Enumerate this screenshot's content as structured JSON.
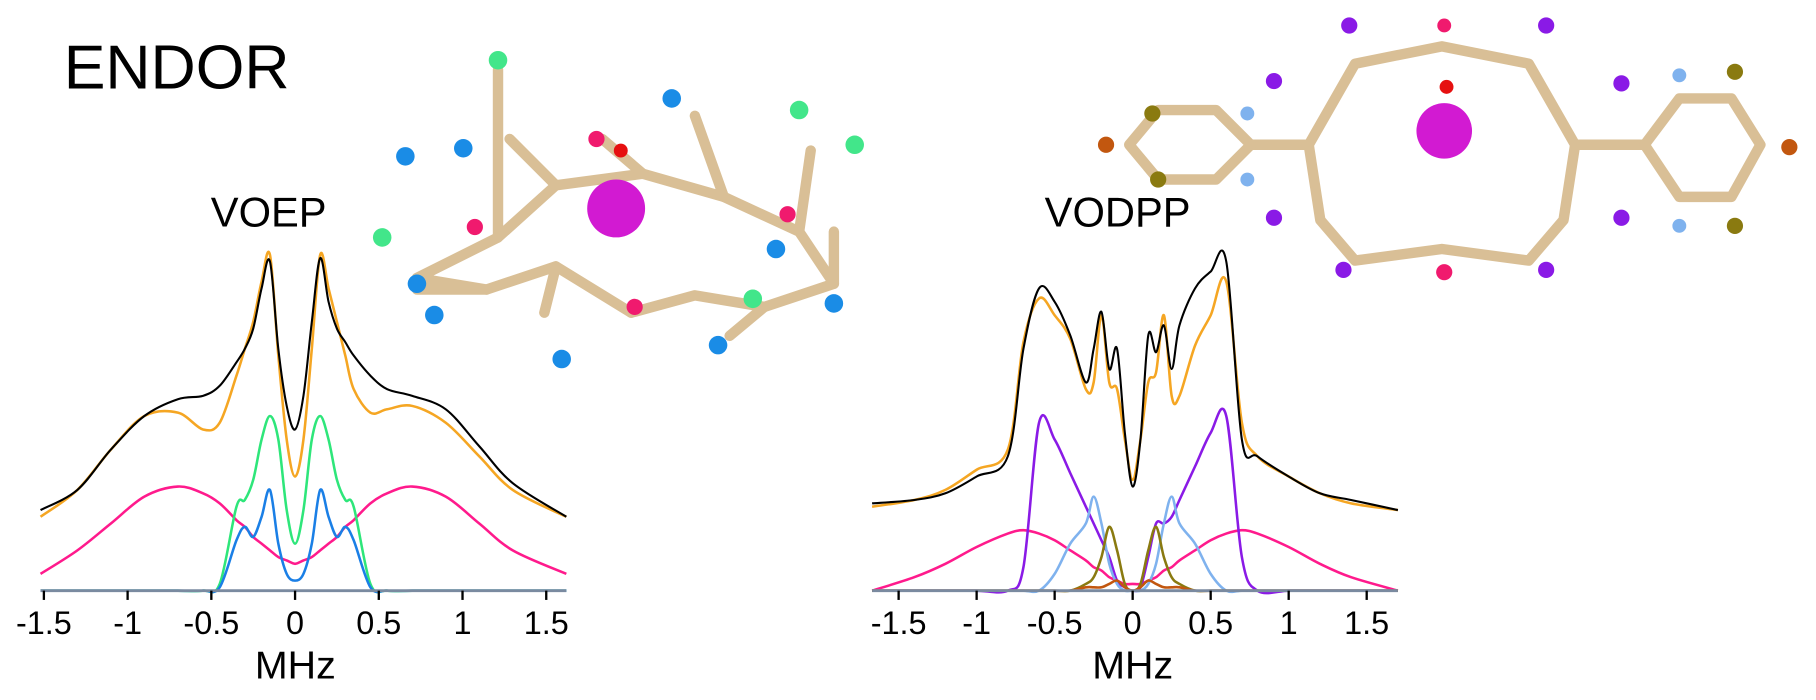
{
  "title": "ENDOR",
  "chart_data": [
    {
      "type": "line",
      "title": "VOEP",
      "xlabel": "MHz",
      "xlim": [
        -1.52,
        1.62
      ],
      "ylim": [
        0,
        1.05
      ],
      "xticks": [
        -1.5,
        -1,
        -0.5,
        0,
        0.5,
        1,
        1.5
      ],
      "x": [
        -1.52,
        -1.3,
        -1.1,
        -0.9,
        -0.7,
        -0.55,
        -0.45,
        -0.35,
        -0.3,
        -0.25,
        -0.2,
        -0.15,
        -0.1,
        -0.05,
        0,
        0.05,
        0.1,
        0.15,
        0.2,
        0.25,
        0.3,
        0.35,
        0.45,
        0.55,
        0.7,
        0.9,
        1.1,
        1.3,
        1.62
      ],
      "series": [
        {
          "color": "#ff1a8c",
          "values": [
            0.05,
            0.12,
            0.2,
            0.28,
            0.31,
            0.29,
            0.26,
            0.21,
            0.19,
            0.16,
            0.14,
            0.12,
            0.1,
            0.09,
            0.08,
            0.09,
            0.1,
            0.12,
            0.14,
            0.16,
            0.19,
            0.21,
            0.26,
            0.29,
            0.31,
            0.28,
            0.2,
            0.12,
            0.05
          ]
        },
        {
          "color": "#2ee67a",
          "values": [
            0,
            0,
            0,
            0,
            0,
            0,
            0.02,
            0.25,
            0.27,
            0.33,
            0.45,
            0.52,
            0.45,
            0.24,
            0.14,
            0.24,
            0.45,
            0.52,
            0.45,
            0.33,
            0.27,
            0.25,
            0.02,
            0,
            0,
            0,
            0,
            0,
            0
          ]
        },
        {
          "color": "#1a7fe6",
          "values": [
            0,
            0,
            0,
            0,
            0,
            0,
            0.01,
            0.15,
            0.19,
            0.16,
            0.22,
            0.3,
            0.14,
            0.05,
            0.03,
            0.05,
            0.14,
            0.3,
            0.22,
            0.16,
            0.19,
            0.15,
            0.01,
            0,
            0,
            0,
            0,
            0,
            0
          ]
        },
        {
          "color": "#f5a623",
          "values": [
            0.22,
            0.3,
            0.42,
            0.52,
            0.53,
            0.48,
            0.5,
            0.64,
            0.72,
            0.8,
            0.92,
            1.0,
            0.7,
            0.45,
            0.34,
            0.45,
            0.72,
            1.0,
            0.9,
            0.8,
            0.7,
            0.6,
            0.53,
            0.54,
            0.55,
            0.5,
            0.4,
            0.3,
            0.22
          ]
        },
        {
          "color": "#000000",
          "values": [
            0.24,
            0.3,
            0.42,
            0.52,
            0.57,
            0.58,
            0.61,
            0.68,
            0.72,
            0.78,
            0.9,
            0.98,
            0.72,
            0.55,
            0.48,
            0.58,
            0.8,
            0.99,
            0.86,
            0.78,
            0.74,
            0.7,
            0.64,
            0.6,
            0.58,
            0.54,
            0.43,
            0.32,
            0.22
          ]
        }
      ]
    },
    {
      "type": "line",
      "title": "VODPP",
      "xlabel": "MHz",
      "xlim": [
        -1.67,
        1.7
      ],
      "ylim": [
        0,
        1.05
      ],
      "xticks": [
        -1.5,
        -1,
        -0.5,
        0,
        0.5,
        1,
        1.5
      ],
      "x": [
        -1.67,
        -1.4,
        -1.2,
        -1.0,
        -0.8,
        -0.7,
        -0.6,
        -0.5,
        -0.4,
        -0.3,
        -0.25,
        -0.2,
        -0.15,
        -0.1,
        -0.05,
        0,
        0.05,
        0.1,
        0.15,
        0.2,
        0.25,
        0.3,
        0.4,
        0.5,
        0.6,
        0.7,
        0.8,
        1.0,
        1.2,
        1.4,
        1.7
      ],
      "series": [
        {
          "color": "#ff1a8c",
          "values": [
            0,
            0.04,
            0.08,
            0.13,
            0.17,
            0.18,
            0.17,
            0.15,
            0.12,
            0.09,
            0.07,
            0.06,
            0.04,
            0.03,
            0.02,
            0.02,
            0.02,
            0.03,
            0.04,
            0.06,
            0.07,
            0.09,
            0.12,
            0.15,
            0.17,
            0.18,
            0.17,
            0.13,
            0.08,
            0.04,
            0
          ]
        },
        {
          "color": "#8a1ae6",
          "values": [
            0,
            0,
            0,
            0,
            0,
            0.07,
            0.5,
            0.45,
            0.35,
            0.25,
            0.2,
            0.15,
            0.1,
            0.03,
            0.01,
            0,
            0.01,
            0.1,
            0.2,
            0.2,
            0.22,
            0.27,
            0.37,
            0.47,
            0.52,
            0.1,
            0,
            0,
            0,
            0,
            0
          ]
        },
        {
          "color": "#7fb2ee",
          "values": [
            0,
            0,
            0,
            0,
            0,
            0,
            0,
            0.05,
            0.14,
            0.2,
            0.28,
            0.2,
            0.08,
            0.02,
            0,
            0,
            0,
            0.02,
            0.08,
            0.2,
            0.28,
            0.2,
            0.14,
            0.05,
            0,
            0,
            0,
            0,
            0,
            0,
            0
          ]
        },
        {
          "color": "#8a7a10",
          "values": [
            0,
            0,
            0,
            0,
            0,
            0,
            0,
            0,
            0,
            0.02,
            0.04,
            0.1,
            0.19,
            0.12,
            0.02,
            0,
            0.02,
            0.12,
            0.19,
            0.1,
            0.04,
            0.02,
            0,
            0,
            0,
            0,
            0,
            0,
            0,
            0,
            0
          ]
        },
        {
          "color": "#c2570f",
          "values": [
            0,
            0,
            0,
            0,
            0,
            0,
            0,
            0,
            0,
            0.01,
            0.01,
            0.01,
            0.02,
            0.03,
            0.01,
            0,
            0.01,
            0.03,
            0.02,
            0.01,
            0.01,
            0.01,
            0,
            0,
            0,
            0,
            0,
            0,
            0,
            0,
            0
          ]
        },
        {
          "color": "#f5a623",
          "values": [
            0.25,
            0.27,
            0.3,
            0.36,
            0.42,
            0.74,
            0.87,
            0.82,
            0.75,
            0.6,
            0.62,
            0.82,
            0.62,
            0.6,
            0.45,
            0.33,
            0.45,
            0.62,
            0.65,
            0.82,
            0.58,
            0.58,
            0.73,
            0.82,
            0.92,
            0.5,
            0.4,
            0.34,
            0.29,
            0.26,
            0.24
          ]
        },
        {
          "color": "#000000",
          "values": [
            0.26,
            0.27,
            0.29,
            0.34,
            0.4,
            0.72,
            0.9,
            0.86,
            0.76,
            0.62,
            0.72,
            0.83,
            0.66,
            0.72,
            0.47,
            0.31,
            0.45,
            0.76,
            0.71,
            0.79,
            0.66,
            0.79,
            0.9,
            0.95,
            0.98,
            0.45,
            0.4,
            0.34,
            0.29,
            0.27,
            0.24
          ]
        }
      ]
    }
  ]
}
